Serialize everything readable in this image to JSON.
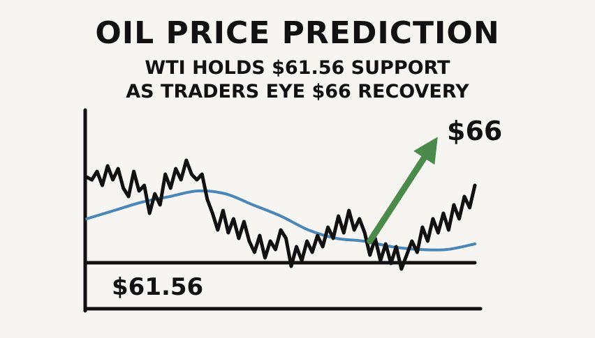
{
  "header": {
    "title": "OIL PRICE PREDICTION",
    "subtitle_line1": "WTI HOLDS $61.56 SUPPORT",
    "subtitle_line2": "AS TRADERS EYE $66 RECOVERY"
  },
  "colors": {
    "background": "#f7f5f1",
    "price_line": "#111111",
    "moving_average": "#4a86b8",
    "arrow": "#4a8a4a"
  },
  "chart_data": {
    "type": "line",
    "title": "OIL PRICE PREDICTION",
    "xlabel": "",
    "ylabel": "",
    "grid": false,
    "ylim": [
      61.0,
      67.5
    ],
    "series": [
      {
        "role": "price",
        "color": "#111111",
        "values": [
          64.9,
          64.8,
          65.1,
          64.6,
          65.3,
          64.8,
          65.2,
          64.5,
          64.2,
          65.1,
          64.4,
          64.6,
          63.6,
          64.3,
          63.9,
          65.0,
          64.5,
          65.2,
          64.8,
          65.5,
          65.0,
          64.8,
          65.0,
          64.1,
          63.6,
          63.0,
          63.7,
          62.9,
          63.4,
          62.7,
          63.3,
          62.6,
          62.2,
          62.8,
          62.0,
          62.6,
          62.3,
          63.0,
          62.7,
          61.7,
          62.4,
          61.9,
          62.6,
          62.2,
          62.8,
          62.4,
          63.1,
          62.7,
          63.5,
          62.9,
          63.7,
          63.0,
          63.4,
          62.9,
          62.1,
          62.7,
          61.9,
          62.5,
          61.8,
          62.4,
          61.6,
          62.1,
          62.6,
          62.2,
          63.1,
          62.6,
          63.4,
          62.9,
          63.6,
          63.0,
          63.9,
          63.4,
          64.2,
          63.8,
          64.6
        ]
      },
      {
        "role": "moving-average",
        "color": "#4a86b8",
        "values": [
          63.4,
          63.7,
          64.0,
          64.2,
          64.4,
          64.3,
          63.9,
          63.5,
          63.0,
          62.7,
          62.6,
          62.4,
          62.3,
          62.3,
          62.5
        ]
      }
    ],
    "support_level": "$61.56",
    "target_level": "$66",
    "arrow": {
      "from_index": 54,
      "direction": "up-right",
      "to_value": 66
    }
  }
}
